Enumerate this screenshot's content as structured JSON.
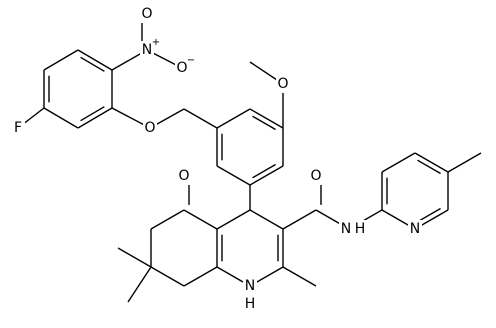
{
  "labels": [
    {
      "text": "F"
    },
    {
      "text": "N",
      "charge": "+"
    },
    {
      "text": "O"
    },
    {
      "text": "O",
      "charge": "−"
    },
    {
      "text": "O"
    },
    {
      "text": "O"
    },
    {
      "text": "O"
    },
    {
      "text": "O"
    },
    {
      "text": "N"
    },
    {
      "text": "H"
    },
    {
      "text": "N"
    },
    {
      "text": "H"
    },
    {
      "text": "N"
    }
  ]
}
